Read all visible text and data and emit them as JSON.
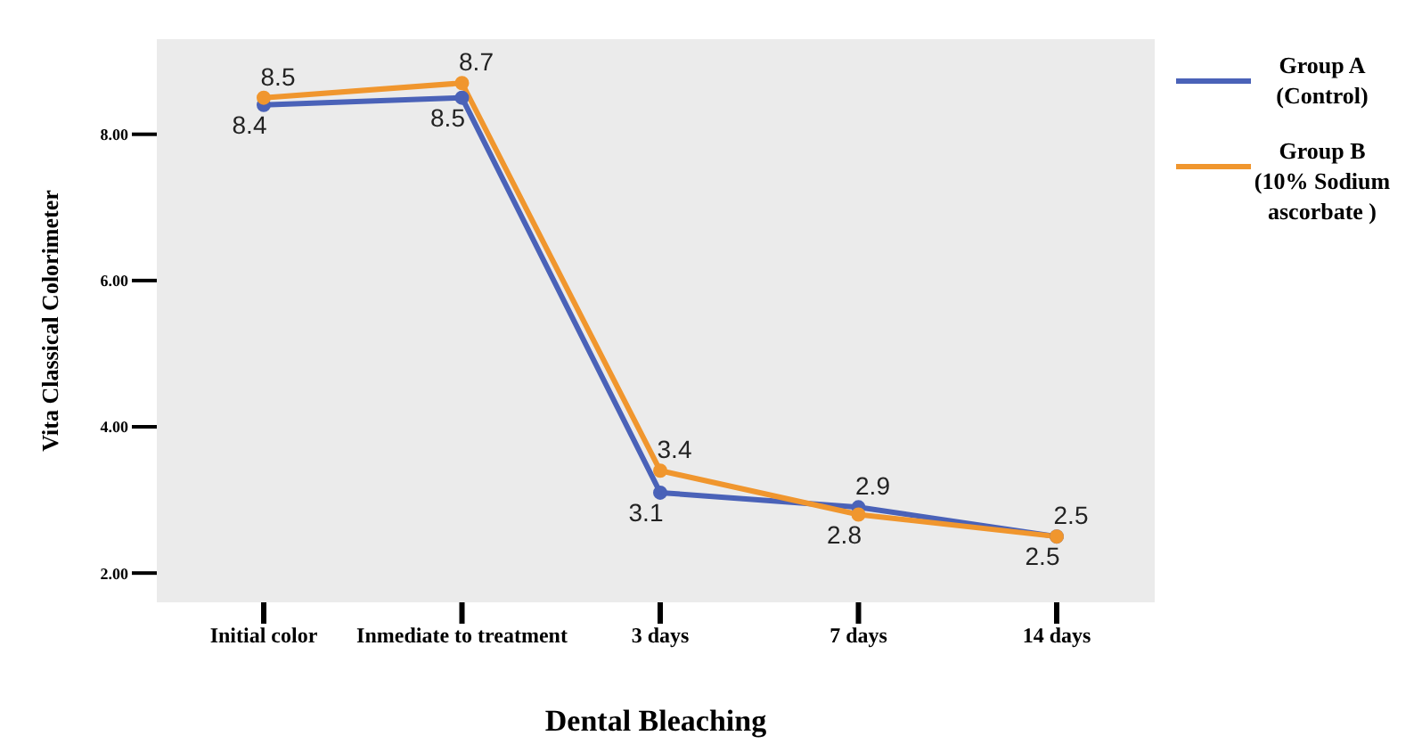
{
  "chart_data": {
    "type": "line",
    "xlabel": "Dental Bleaching",
    "ylabel": "Vita Classical Colorimeter",
    "categories": [
      "Initial color",
      "Inmediate to treatment",
      "3 days",
      "7 days",
      "14 days"
    ],
    "series": [
      {
        "name": "Group A (Control)",
        "color": "#4a62b8",
        "values": [
          8.4,
          8.5,
          3.1,
          2.9,
          2.5
        ]
      },
      {
        "name": "Group B (10% Sodium ascorbate )",
        "color": "#f0962e",
        "values": [
          8.5,
          8.7,
          3.4,
          2.8,
          2.5
        ]
      }
    ],
    "ylim": [
      1.6,
      9.3
    ],
    "yticks": [
      {
        "value": 2,
        "label": "2.00"
      },
      {
        "value": 4,
        "label": "4.00"
      },
      {
        "value": 6,
        "label": "6.00"
      },
      {
        "value": 8,
        "label": "8.00"
      }
    ],
    "data_labels": true,
    "legend": "right",
    "marker": "circle",
    "line_style": "solid",
    "grid": false
  }
}
